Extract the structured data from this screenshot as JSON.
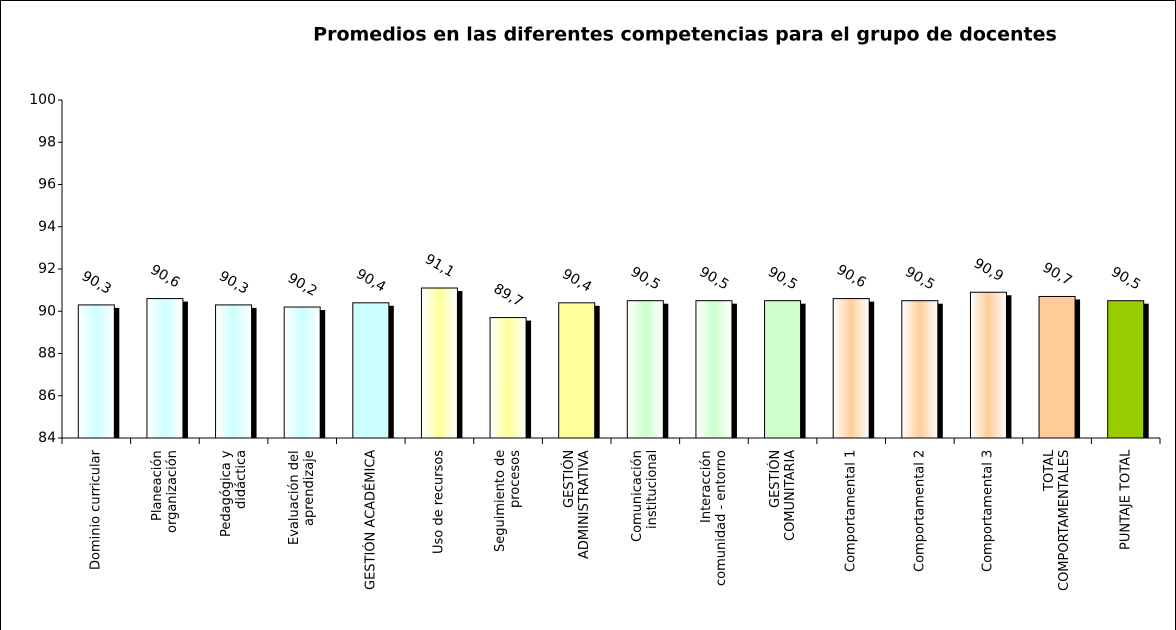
{
  "chart_data": {
    "type": "bar",
    "title": "Promedios en las diferentes competencias para el grupo de docentes",
    "categories": [
      "Dominio curricular",
      "Planeación\norganización",
      "Pedagógica y\ndidáctica",
      "Evaluación del\naprendizaje",
      "GESTIÓN ACADÉMICA",
      "Uso de recursos",
      "Seguimiento de\nprocesos",
      "GESTIÓN\nADMINISTRATIVA",
      "Comunicación\ninstitucional",
      "Interacción\ncomunidad - entorno",
      "GESTIÓN\nCOMUNITARIA",
      "Comportamental 1",
      "Comportamental 2",
      "Comportamental 3",
      "TOTAL\nCOMPORTAMENTALES",
      "PUNTAJE TOTAL"
    ],
    "values": [
      90.3,
      90.6,
      90.3,
      90.2,
      90.4,
      91.1,
      89.7,
      90.4,
      90.5,
      90.5,
      90.5,
      90.6,
      90.5,
      90.9,
      90.7,
      90.5
    ],
    "value_labels": [
      "90,3",
      "90,6",
      "90,3",
      "90,2",
      "90,4",
      "91,1",
      "89,7",
      "90,4",
      "90,5",
      "90,5",
      "90,5",
      "90,6",
      "90,5",
      "90,9",
      "90,7",
      "90,5"
    ],
    "colors": [
      "#ccffff",
      "#ccffff",
      "#ccffff",
      "#ccffff",
      "#ccffff",
      "#ffff99",
      "#ffff99",
      "#ffff99",
      "#ccffcc",
      "#ccffcc",
      "#ccffcc",
      "#ffcc99",
      "#ffcc99",
      "#ffcc99",
      "#ffcc99",
      "#99cc00"
    ],
    "ylim": [
      84,
      100
    ],
    "yticks": [
      84,
      86,
      88,
      90,
      92,
      94,
      96,
      98,
      100
    ],
    "grid": false
  }
}
